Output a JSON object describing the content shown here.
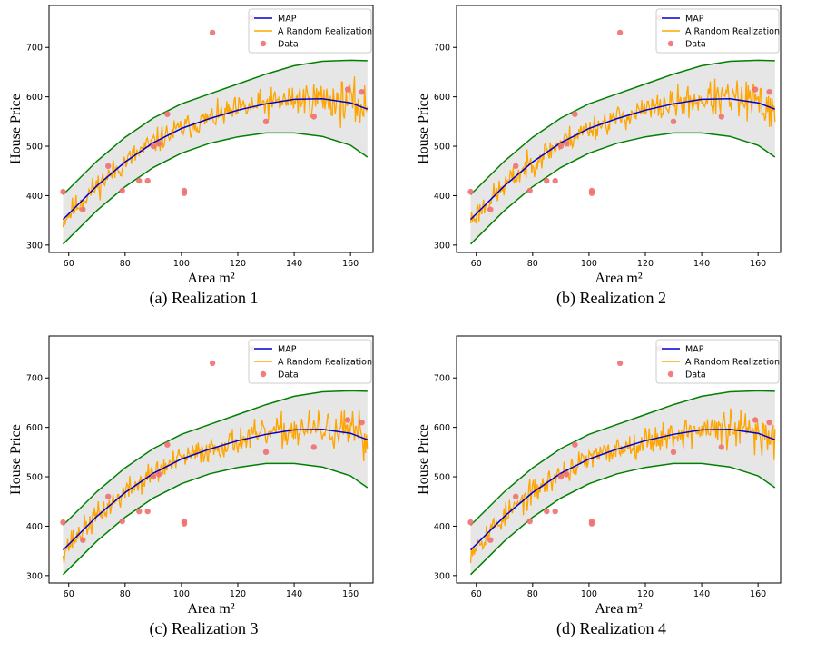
{
  "figure": {
    "captions": [
      "(a) Realization 1",
      "(b) Realization 2",
      "(c) Realization 3",
      "(d) Realization 4"
    ]
  },
  "colors": {
    "map": "#0000cc",
    "realization": "#ffa500",
    "data": "#f07070",
    "bound": "#008000",
    "band": "#e6e6e6"
  },
  "chart_data": [
    {
      "type": "line",
      "title": "",
      "xlabel": "Area m²",
      "ylabel": "House Price",
      "xlim": [
        53,
        168
      ],
      "ylim": [
        285,
        785
      ],
      "xticks": [
        60,
        80,
        100,
        120,
        140,
        160
      ],
      "yticks": [
        300,
        400,
        500,
        600,
        700
      ],
      "grid": false,
      "legend": {
        "position": "top-right",
        "entries": [
          "MAP",
          "A Random Realization",
          "Data"
        ]
      },
      "band": {
        "name": "",
        "x": [
          58,
          70,
          80,
          90,
          100,
          110,
          120,
          130,
          140,
          150,
          160,
          166
        ],
        "lower": [
          302,
          370,
          418,
          457,
          486,
          506,
          519,
          527,
          527,
          520,
          502,
          478
        ],
        "upper": [
          402,
          470,
          518,
          557,
          586,
          606,
          626,
          646,
          663,
          672,
          674,
          673
        ]
      },
      "series": [
        {
          "name": "MAP",
          "x": [
            58,
            70,
            80,
            90,
            100,
            110,
            120,
            130,
            140,
            150,
            160,
            166
          ],
          "y": [
            352,
            420,
            468,
            507,
            536,
            556,
            573,
            586,
            595,
            596,
            588,
            575
          ]
        },
        {
          "name": "A Random Realization",
          "seed": 11
        },
        {
          "name": "Data",
          "x": [
            58,
            65,
            74,
            79,
            85,
            88,
            90,
            92,
            95,
            101,
            101,
            111,
            125,
            130,
            147,
            159,
            164
          ],
          "y": [
            408,
            372,
            460,
            410,
            430,
            430,
            500,
            505,
            565,
            410,
            405,
            730,
            760,
            550,
            560,
            615,
            610
          ]
        }
      ]
    },
    {
      "type": "line",
      "title": "",
      "xlabel": "Area m²",
      "ylabel": "House Price",
      "xlim": [
        53,
        168
      ],
      "ylim": [
        285,
        785
      ],
      "xticks": [
        60,
        80,
        100,
        120,
        140,
        160
      ],
      "yticks": [
        300,
        400,
        500,
        600,
        700
      ],
      "grid": false,
      "legend": {
        "position": "top-right",
        "entries": [
          "MAP",
          "A Random Realization",
          "Data"
        ]
      },
      "band": {
        "name": "",
        "x": [
          58,
          70,
          80,
          90,
          100,
          110,
          120,
          130,
          140,
          150,
          160,
          166
        ],
        "lower": [
          302,
          370,
          418,
          457,
          486,
          506,
          519,
          527,
          527,
          520,
          502,
          478
        ],
        "upper": [
          402,
          470,
          518,
          557,
          586,
          606,
          626,
          646,
          663,
          672,
          674,
          673
        ]
      },
      "series": [
        {
          "name": "MAP",
          "x": [
            58,
            70,
            80,
            90,
            100,
            110,
            120,
            130,
            140,
            150,
            160,
            166
          ],
          "y": [
            352,
            420,
            468,
            507,
            536,
            556,
            573,
            586,
            595,
            596,
            588,
            575
          ]
        },
        {
          "name": "A Random Realization",
          "seed": 23
        },
        {
          "name": "Data",
          "x": [
            58,
            65,
            74,
            79,
            85,
            88,
            90,
            92,
            95,
            101,
            101,
            111,
            125,
            130,
            147,
            159,
            164
          ],
          "y": [
            408,
            372,
            460,
            410,
            430,
            430,
            500,
            505,
            565,
            410,
            405,
            730,
            760,
            550,
            560,
            615,
            610
          ]
        }
      ]
    },
    {
      "type": "line",
      "title": "",
      "xlabel": "Area m²",
      "ylabel": "House Price",
      "xlim": [
        53,
        168
      ],
      "ylim": [
        285,
        785
      ],
      "xticks": [
        60,
        80,
        100,
        120,
        140,
        160
      ],
      "yticks": [
        300,
        400,
        500,
        600,
        700
      ],
      "grid": false,
      "legend": {
        "position": "top-right",
        "entries": [
          "MAP",
          "A Random Realization",
          "Data"
        ]
      },
      "band": {
        "name": "",
        "x": [
          58,
          70,
          80,
          90,
          100,
          110,
          120,
          130,
          140,
          150,
          160,
          166
        ],
        "lower": [
          302,
          370,
          418,
          457,
          486,
          506,
          519,
          527,
          527,
          520,
          502,
          478
        ],
        "upper": [
          402,
          470,
          518,
          557,
          586,
          606,
          626,
          646,
          663,
          672,
          674,
          673
        ]
      },
      "series": [
        {
          "name": "MAP",
          "x": [
            58,
            70,
            80,
            90,
            100,
            110,
            120,
            130,
            140,
            150,
            160,
            166
          ],
          "y": [
            352,
            420,
            468,
            507,
            536,
            556,
            573,
            586,
            595,
            596,
            588,
            575
          ]
        },
        {
          "name": "A Random Realization",
          "seed": 37
        },
        {
          "name": "Data",
          "x": [
            58,
            65,
            74,
            79,
            85,
            88,
            90,
            92,
            95,
            101,
            101,
            111,
            125,
            130,
            147,
            159,
            164
          ],
          "y": [
            408,
            372,
            460,
            410,
            430,
            430,
            500,
            505,
            565,
            410,
            405,
            730,
            760,
            550,
            560,
            615,
            610
          ]
        }
      ]
    },
    {
      "type": "line",
      "title": "",
      "xlabel": "Area m²",
      "ylabel": "House Price",
      "xlim": [
        53,
        168
      ],
      "ylim": [
        285,
        785
      ],
      "xticks": [
        60,
        80,
        100,
        120,
        140,
        160
      ],
      "yticks": [
        300,
        400,
        500,
        600,
        700
      ],
      "grid": false,
      "legend": {
        "position": "top-right",
        "entries": [
          "MAP",
          "A Random Realization",
          "Data"
        ]
      },
      "band": {
        "name": "",
        "x": [
          58,
          70,
          80,
          90,
          100,
          110,
          120,
          130,
          140,
          150,
          160,
          166
        ],
        "lower": [
          302,
          370,
          418,
          457,
          486,
          506,
          519,
          527,
          527,
          520,
          502,
          478
        ],
        "upper": [
          402,
          470,
          518,
          557,
          586,
          606,
          626,
          646,
          663,
          672,
          674,
          673
        ]
      },
      "series": [
        {
          "name": "MAP",
          "x": [
            58,
            70,
            80,
            90,
            100,
            110,
            120,
            130,
            140,
            150,
            160,
            166
          ],
          "y": [
            352,
            420,
            468,
            507,
            536,
            556,
            573,
            586,
            595,
            596,
            588,
            575
          ]
        },
        {
          "name": "A Random Realization",
          "seed": 53
        },
        {
          "name": "Data",
          "x": [
            58,
            65,
            74,
            79,
            85,
            88,
            90,
            92,
            95,
            101,
            101,
            111,
            125,
            130,
            147,
            159,
            164
          ],
          "y": [
            408,
            372,
            460,
            410,
            430,
            430,
            500,
            505,
            565,
            410,
            405,
            730,
            760,
            550,
            560,
            615,
            610
          ]
        }
      ]
    }
  ]
}
